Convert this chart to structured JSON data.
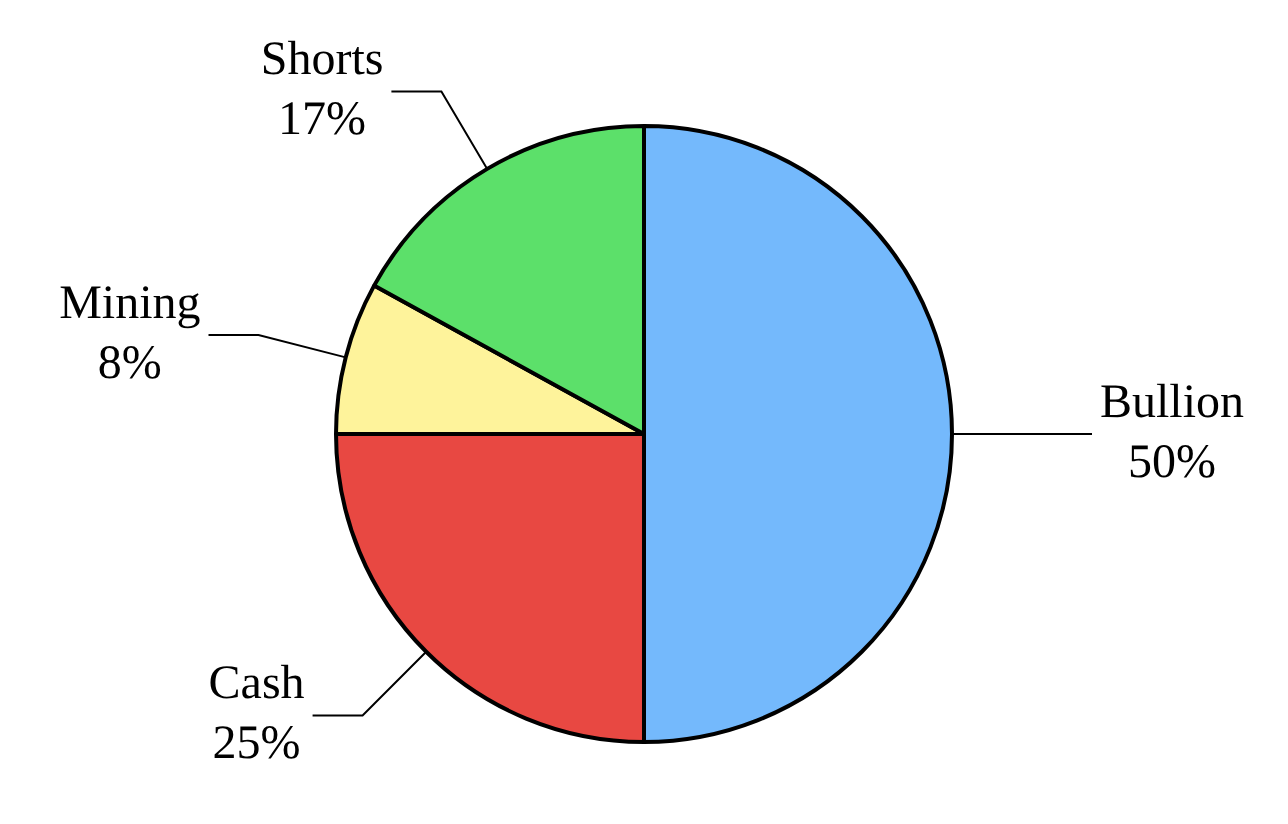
{
  "chart_data": {
    "type": "pie",
    "categories": [
      "Bullion",
      "Cash",
      "Mining",
      "Shorts"
    ],
    "values": [
      50,
      25,
      8,
      17
    ],
    "colors": [
      "#74b9fc",
      "#e84842",
      "#fef39b",
      "#5ce06a"
    ],
    "value_labels": [
      "50%",
      "25%",
      "8%",
      "17%"
    ],
    "legend": false
  }
}
